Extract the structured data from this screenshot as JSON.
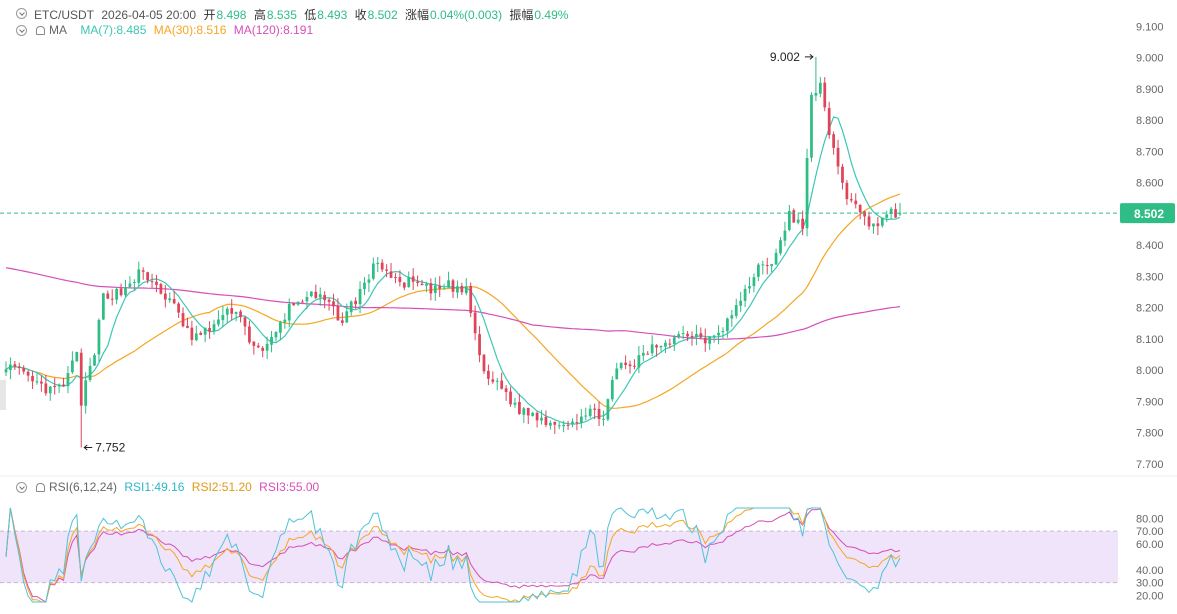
{
  "header": {
    "pair": "ETC/USDT",
    "datetime": "2026-04-05 20:00",
    "open_label": "开",
    "open": "8.498",
    "high_label": "高",
    "high": "8.535",
    "low_label": "低",
    "low": "8.493",
    "close_label": "收",
    "close": "8.502",
    "change_label": "涨幅",
    "change": "0.04%(0.003)",
    "amp_label": "振幅",
    "amplitude": "0.49%"
  },
  "ma_header": {
    "label": "MA",
    "ma7": "MA(7):8.485",
    "ma30": "MA(30):8.516",
    "ma120": "MA(120):8.191"
  },
  "rsi_header": {
    "label": "RSI(6,12,24)",
    "rsi1": "RSI1:49.16",
    "rsi2": "RSI2:51.20",
    "rsi3": "RSI3:55.00"
  },
  "colors": {
    "up": "#2ebd85",
    "down": "#e0445a",
    "ma7": "#3cc8b4",
    "ma30": "#f5a623",
    "ma120": "#d64fb8",
    "rsi1": "#4fc3d6",
    "rsi2": "#f5a623",
    "rsi3": "#d64fb8",
    "rsi_band": "#f0e4fb",
    "price_tag": "#2ebd85"
  },
  "chart_data": [
    {
      "type": "candlestick",
      "title": "ETC/USDT",
      "ylim": [
        7.68,
        9.12
      ],
      "yticks": [
        "9.100",
        "9.000",
        "8.900",
        "8.800",
        "8.700",
        "8.600",
        "8.500",
        "8.400",
        "8.300",
        "8.200",
        "8.100",
        "8.000",
        "7.900",
        "7.800",
        "7.700"
      ],
      "current_price": "8.502",
      "annotations": {
        "high": "9.002",
        "low": "7.752"
      },
      "anchors": [
        [
          0,
          8.02
        ],
        [
          6,
          7.96
        ],
        [
          10,
          7.93
        ],
        [
          13,
          7.95
        ],
        [
          16,
          8.05
        ],
        [
          17,
          7.9
        ],
        [
          20,
          8.05
        ],
        [
          22,
          8.24
        ],
        [
          26,
          8.25
        ],
        [
          30,
          8.31
        ],
        [
          34,
          8.27
        ],
        [
          38,
          8.2
        ],
        [
          42,
          8.1
        ],
        [
          45,
          8.12
        ],
        [
          48,
          8.16
        ],
        [
          52,
          8.2
        ],
        [
          55,
          8.1
        ],
        [
          58,
          8.05
        ],
        [
          61,
          8.12
        ],
        [
          64,
          8.2
        ],
        [
          68,
          8.24
        ],
        [
          72,
          8.22
        ],
        [
          76,
          8.16
        ],
        [
          80,
          8.25
        ],
        [
          84,
          8.35
        ],
        [
          88,
          8.28
        ],
        [
          92,
          8.28
        ],
        [
          96,
          8.25
        ],
        [
          100,
          8.27
        ],
        [
          104,
          8.25
        ],
        [
          106,
          8.12
        ],
        [
          108,
          7.98
        ],
        [
          112,
          7.95
        ],
        [
          115,
          7.88
        ],
        [
          120,
          7.85
        ],
        [
          124,
          7.83
        ],
        [
          128,
          7.84
        ],
        [
          132,
          7.86
        ],
        [
          135,
          7.86
        ],
        [
          138,
          8.0
        ],
        [
          142,
          8.02
        ],
        [
          146,
          8.07
        ],
        [
          150,
          8.1
        ],
        [
          154,
          8.12
        ],
        [
          158,
          8.1
        ],
        [
          162,
          8.14
        ],
        [
          166,
          8.22
        ],
        [
          170,
          8.33
        ],
        [
          174,
          8.36
        ],
        [
          177,
          8.5
        ],
        [
          180,
          8.45
        ],
        [
          182,
          8.88
        ],
        [
          184,
          8.92
        ],
        [
          186,
          8.74
        ],
        [
          188,
          8.66
        ],
        [
          190,
          8.56
        ],
        [
          194,
          8.48
        ],
        [
          197,
          8.47
        ],
        [
          200,
          8.5
        ],
        [
          202,
          8.502
        ]
      ],
      "low_index": 17,
      "high_index": 183
    },
    {
      "type": "line",
      "title": "RSI(6,12,24)",
      "ylim": [
        15,
        88
      ],
      "yticks": [
        "80.00",
        "70.00",
        "60.00",
        "40.00",
        "30.00",
        "20.00"
      ],
      "band": [
        30,
        70
      ],
      "series": [
        {
          "name": "RSI1",
          "last": 49.16
        },
        {
          "name": "RSI2",
          "last": 51.2
        },
        {
          "name": "RSI3",
          "last": 55.0
        }
      ]
    }
  ]
}
